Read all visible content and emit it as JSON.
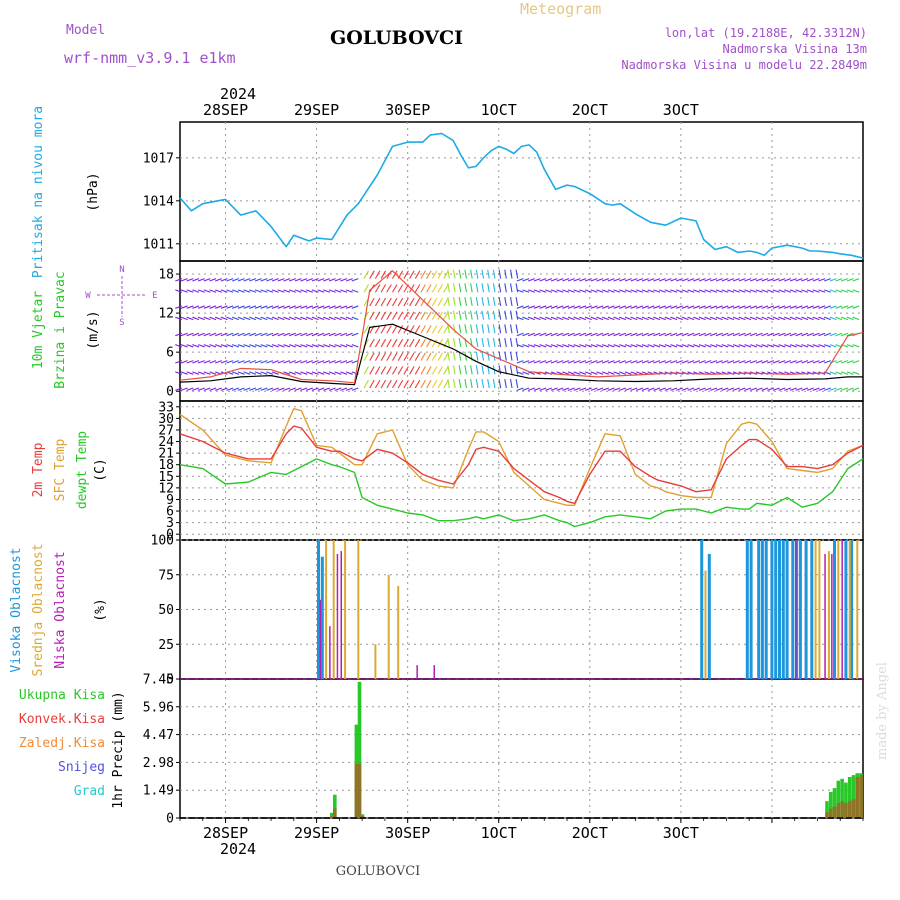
{
  "header": {
    "model_label": "Model",
    "model_name": "wrf-nmm_v3.9.1 e1km",
    "station": "GOLUBOVCI",
    "product": "Meteogram",
    "lonlat": "lon,lat (19.2188E, 42.3312N)",
    "altitude": "Nadmorska Visina 13m",
    "model_altitude": "Nadmorska Visina u modelu 22.2849m",
    "credit": "made by Angel",
    "footer_station": "GOLUBOVCI"
  },
  "time_axis": {
    "top_year": "2024",
    "bottom_year": "2024",
    "labels": [
      "28SEP",
      "29SEP",
      "30SEP",
      "1OCT",
      "2OCT",
      "3OCT"
    ]
  },
  "panels": {
    "pressure": {
      "title": "Pritisak na nivou mora",
      "unit": "(hPa)"
    },
    "wind": {
      "title_1": "10m Vjetar",
      "title_2": "Brzina i Pravac",
      "unit": "(m/s)",
      "compass_n": "N",
      "compass_s": "S",
      "compass_w": "W",
      "compass_e": "E"
    },
    "temp": {
      "title_1": "2m Temp",
      "title_2": "SFC Temp",
      "title_3": "dewpt Temp",
      "unit": "(C)"
    },
    "cloud": {
      "title_1": "Visoka Oblacnost",
      "title_2": "Srednja Oblacnost",
      "title_3": "Niska Oblacnost",
      "unit": "(%)"
    },
    "precip": {
      "unit": "1hr Precip (mm)",
      "legend": [
        "Ukupna Kisa",
        "Konvek.Kisa",
        "Zaledj.Kisa",
        "Snijeg",
        "Grad"
      ]
    }
  },
  "colors": {
    "pressure": "#1eaae6",
    "temp2m": "#e83c3c",
    "sfc": "#e0a030",
    "dewpt": "#28c828",
    "cloud_high": "#1e96dc",
    "cloud_mid": "#dcaa32",
    "cloud_low": "#b41eb4",
    "precip_total": "#28c828",
    "precip_conv": "#e83c3c",
    "precip_frz": "#f08c32",
    "precip_snow": "#5050e6",
    "precip_hail": "#28c8c8",
    "model": "#a050c8",
    "meteogram": "#e6c882",
    "lonlat": "#a050c8"
  },
  "chart_data": [
    {
      "type": "line",
      "title": "Pritisak na nivou mora",
      "ylabel": "(hPa)",
      "x_unit": "hours from 27SEP 12UTC",
      "yticks": [
        1011,
        1014,
        1017
      ],
      "ylim": [
        1009.8,
        1019.5
      ],
      "x": [
        0,
        3,
        6,
        10,
        12,
        16,
        20,
        24,
        28,
        30,
        34,
        36,
        40,
        44,
        47,
        48,
        52,
        56,
        60,
        64,
        66,
        69,
        72,
        74,
        76,
        78,
        80,
        82,
        84,
        86,
        88,
        90,
        92,
        94,
        96,
        99,
        102,
        104,
        108,
        112,
        114,
        116,
        120,
        124,
        128,
        132,
        136,
        138,
        141,
        144,
        147,
        150,
        152,
        154,
        156,
        160,
        164,
        166,
        168,
        172,
        174,
        177,
        180
      ],
      "values": [
        1014.2,
        1013.3,
        1013.8,
        1014,
        1014.1,
        1013,
        1013.3,
        1012.2,
        1010.8,
        1011.6,
        1011.2,
        1011.4,
        1011.3,
        1013,
        1013.8,
        1014.2,
        1015.8,
        1017.8,
        1018.1,
        1018.1,
        1018.6,
        1018.7,
        1018.2,
        1017.2,
        1016.3,
        1016.4,
        1017,
        1017.5,
        1017.8,
        1017.6,
        1017.3,
        1017.8,
        1017.9,
        1017.4,
        1016.2,
        1014.8,
        1015.1,
        1015,
        1014.5,
        1013.8,
        1013.7,
        1013.8,
        1013.1,
        1012.5,
        1012.3,
        1012.8,
        1012.6,
        1011.3,
        1010.6,
        1010.8,
        1010.4,
        1010.5,
        1010.4,
        1010.2,
        1010.7,
        1010.9,
        1010.7,
        1010.5,
        1010.5,
        1010.4,
        1010.3,
        1010.2,
        1010.0
      ]
    },
    {
      "type": "line",
      "title": "10m Vjetar Brzina i Pravac",
      "ylabel": "(m/s)",
      "x_unit": "hours from 27SEP 12UTC",
      "yticks": [
        0,
        6,
        12,
        18
      ],
      "ylim": [
        -1.5,
        20
      ],
      "x": [
        0,
        8,
        16,
        24,
        32,
        40,
        46,
        50,
        56,
        64,
        72,
        78,
        84,
        92,
        100,
        110,
        120,
        130,
        140,
        150,
        160,
        170,
        176,
        180
      ],
      "series": [
        {
          "name": "mean",
          "values": [
            1.4,
            1.6,
            2.2,
            2.4,
            1.5,
            1.2,
            1.0,
            9.8,
            10.3,
            8.4,
            6.5,
            4.6,
            3.0,
            2.0,
            1.9,
            1.6,
            1.5,
            1.6,
            1.9,
            2.0,
            1.8,
            1.9,
            2.2,
            2.2
          ]
        },
        {
          "name": "gust",
          "values": [
            1.7,
            2.2,
            3.5,
            3.3,
            1.8,
            1.6,
            1.3,
            15.5,
            18.5,
            14.0,
            9.5,
            6.5,
            5.0,
            3.0,
            2.6,
            2.2,
            2.5,
            2.8,
            2.6,
            2.8,
            2.6,
            2.8,
            8.5,
            9.0
          ]
        }
      ]
    },
    {
      "type": "line",
      "title": "2m Temp / SFC Temp / dewpt Temp",
      "ylabel": "(C)",
      "x_unit": "hours from 27SEP 12UTC",
      "yticks": [
        0,
        3,
        6,
        9,
        12,
        15,
        18,
        21,
        24,
        27,
        30,
        33
      ],
      "ylim": [
        -1.5,
        34.5
      ],
      "x": [
        0,
        6,
        12,
        18,
        24,
        28,
        30,
        32,
        36,
        40,
        42,
        46,
        48,
        52,
        56,
        60,
        64,
        68,
        72,
        76,
        78,
        80,
        84,
        88,
        92,
        96,
        100,
        102,
        104,
        108,
        112,
        116,
        120,
        124,
        126,
        128,
        132,
        136,
        140,
        144,
        148,
        150,
        152,
        156,
        160,
        164,
        168,
        172,
        176,
        180
      ],
      "series": [
        {
          "name": "2m Temp",
          "values": [
            26,
            24,
            21,
            19.5,
            19.5,
            26,
            28,
            27.5,
            22.5,
            21.5,
            21.5,
            19.5,
            19,
            22,
            21,
            18.5,
            15.5,
            14,
            13,
            18,
            22,
            22.5,
            21.5,
            17,
            14,
            11,
            9.5,
            8.5,
            8,
            15.5,
            21.5,
            21.5,
            17.5,
            15,
            14,
            13.5,
            12.5,
            11,
            11.5,
            19.5,
            23,
            24.5,
            24.5,
            22,
            17.5,
            17.5,
            17,
            18,
            21,
            23
          ]
        },
        {
          "name": "SFC Temp",
          "values": [
            31,
            27,
            20.5,
            19,
            18.5,
            28,
            32.5,
            32,
            23,
            22.5,
            21,
            18,
            18,
            26,
            27,
            18,
            14,
            12.5,
            12,
            22,
            26.5,
            26.5,
            24,
            16,
            12.5,
            9,
            8,
            7.5,
            7.5,
            17,
            26,
            25.5,
            15.5,
            12.5,
            12,
            11,
            10,
            9.5,
            9.5,
            23.5,
            28.5,
            29,
            28.5,
            24,
            17,
            16.5,
            16,
            17,
            21.5,
            23
          ]
        },
        {
          "name": "dewpt Temp",
          "values": [
            18,
            17,
            13,
            13.5,
            16,
            15.5,
            16.5,
            17.5,
            19.5,
            18,
            17.5,
            16,
            9.5,
            7.5,
            6.5,
            5.5,
            5,
            3.5,
            3.5,
            4,
            4.5,
            4,
            5,
            3.5,
            4,
            5,
            3.5,
            3,
            2,
            3,
            4.5,
            5,
            4.5,
            4,
            5,
            6,
            6.5,
            6.5,
            5.5,
            7,
            6.5,
            6.5,
            8,
            7.5,
            9.5,
            7,
            8,
            11,
            17,
            19.5
          ]
        }
      ]
    },
    {
      "type": "bar",
      "title": "Visoka / Srednja / Niska Oblacnost",
      "ylabel": "(%)",
      "x_unit": "hours from 27SEP 12UTC",
      "yticks": [
        0,
        25,
        50,
        75,
        100
      ],
      "ylim": [
        0,
        100
      ],
      "series": [
        {
          "name": "Visoka Oblacnost",
          "x": [
            36.5,
            37.5,
            137.5,
            139.5,
            149.5,
            150.5,
            152.5,
            153.5,
            154.5,
            156,
            157,
            158,
            159,
            160,
            161.5,
            162.5,
            163.5,
            165,
            166.5,
            172.5,
            175.5,
            177
          ],
          "values": [
            100,
            88,
            100,
            90,
            100,
            100,
            100,
            100,
            100,
            100,
            100,
            100,
            100,
            100,
            100,
            100,
            100,
            100,
            100,
            100,
            100,
            100
          ]
        },
        {
          "name": "Srednja Oblacnost",
          "x": [
            38.5,
            40.5,
            43.5,
            47,
            51.5,
            55,
            57.5,
            138.5,
            167.5,
            168.5,
            171,
            173.5,
            176.5,
            178.5
          ],
          "values": [
            100,
            100,
            100,
            100,
            25,
            75,
            67,
            78,
            100,
            100,
            92,
            100,
            100,
            100
          ]
        },
        {
          "name": "Niska Oblacnost",
          "x": [
            37,
            39.5,
            41.5,
            42.5,
            62.5,
            67,
            162.3,
            170,
            171.8,
            174.5
          ],
          "values": [
            57,
            38,
            90,
            92,
            10,
            10,
            100,
            90,
            90,
            100
          ]
        }
      ]
    },
    {
      "type": "bar",
      "title": "1hr Precip",
      "ylabel": "1hr Precip (mm)",
      "x_unit": "hours from 27SEP 12UTC",
      "yticks": [
        0,
        1.49,
        2.98,
        4.47,
        5.96,
        7.45
      ],
      "ylim": [
        0,
        7.45
      ],
      "x": [
        40,
        40.8,
        46.5,
        47.3,
        48.1,
        170.5,
        171.5,
        172.5,
        173.5,
        174.5,
        175.5,
        176.5,
        177.5,
        178.5,
        179.5
      ],
      "series": [
        {
          "name": "Ukupna Kisa",
          "values": [
            0.28,
            1.25,
            5.0,
            7.3,
            0.2,
            0.9,
            1.4,
            1.6,
            2.0,
            2.1,
            1.9,
            2.2,
            2.3,
            2.4,
            2.4
          ]
        },
        {
          "name": "Konvek.Kisa",
          "values": [
            0.1,
            0.5,
            2.9,
            2.9,
            0.1,
            0.3,
            0.5,
            0.6,
            0.8,
            0.9,
            0.8,
            0.9,
            1.0,
            2.2,
            2.3
          ]
        }
      ]
    }
  ]
}
